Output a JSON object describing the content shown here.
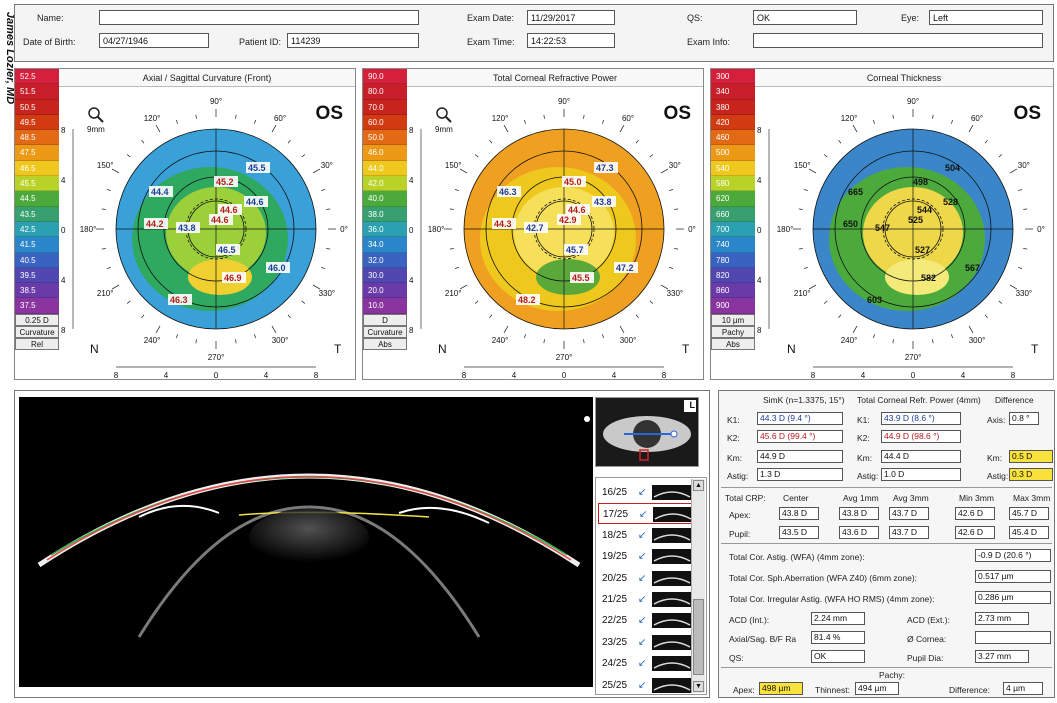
{
  "watermark": "James Lozier, MD",
  "header": {
    "name_label": "Name:",
    "name_value": "",
    "dob_label": "Date of Birth:",
    "dob_value": "04/27/1946",
    "pid_label": "Patient ID:",
    "pid_value": "114239",
    "exam_date_label": "Exam Date:",
    "exam_date_value": "11/29/2017",
    "exam_time_label": "Exam Time:",
    "exam_time_value": "14:22:53",
    "qs_label": "QS:",
    "qs_value": "OK",
    "exam_info_label": "Exam Info:",
    "exam_info_value": "",
    "eye_label": "Eye:",
    "eye_value": "Left"
  },
  "panels": [
    {
      "title": "Axial / Sagittal Curvature (Front)",
      "eye": "OS",
      "scale": [
        "52.5",
        "51.5",
        "50.5",
        "49.5",
        "48.5",
        "47.5",
        "46.5",
        "45.5",
        "44.5",
        "43.5",
        "42.5",
        "41.5",
        "40.5",
        "39.5",
        "38.5",
        "37.5"
      ],
      "scale_colors": [
        "#d4203c",
        "#c81e2a",
        "#c6241c",
        "#d23a12",
        "#e26a14",
        "#ec9a16",
        "#eec81c",
        "#b9d228",
        "#4caa3c",
        "#38a070",
        "#2aa0b0",
        "#2a86c8",
        "#3a62c0",
        "#5048b0",
        "#6a3aa8",
        "#8a34a0"
      ],
      "foot": [
        "0.25 D",
        "Curvature",
        "Rel"
      ],
      "labels": [
        "44.4",
        "44.2",
        "43.8",
        "44.6",
        "44.6",
        "45.2",
        "45.5",
        "44.6",
        "46.5",
        "46.9",
        "46.0",
        "46.3"
      ],
      "angles": [
        "90°",
        "60°",
        "30°",
        "0°",
        "330°",
        "300°",
        "270°",
        "240°",
        "210°",
        "180°",
        "150°",
        "120°"
      ],
      "nt": [
        "N",
        "T"
      ],
      "ticks": [
        "8",
        "4",
        "0",
        "4",
        "8"
      ],
      "magnifier": "9mm"
    },
    {
      "title": "Total Corneal Refractive Power",
      "eye": "OS",
      "scale": [
        "90.0",
        "80.0",
        "70.0",
        "60.0",
        "50.0",
        "46.0",
        "44.0",
        "42.0",
        "40.0",
        "38.0",
        "36.0",
        "34.0",
        "32.0",
        "30.0",
        "20.0",
        "10.0"
      ],
      "scale_colors": [
        "#d4203c",
        "#c81e2a",
        "#c6241c",
        "#d23a12",
        "#e26a14",
        "#ec9a16",
        "#eec81c",
        "#b9d228",
        "#4caa3c",
        "#38a070",
        "#2aa0b0",
        "#2a86c8",
        "#3a62c0",
        "#5048b0",
        "#6a3aa8",
        "#8a34a0"
      ],
      "foot": [
        "D",
        "Curvature",
        "Abs"
      ],
      "labels": [
        "46.3",
        "44.3",
        "42.7",
        "42.9",
        "43.8",
        "45.0",
        "47.3",
        "44.6",
        "45.7",
        "45.5",
        "47.2",
        "48.2"
      ],
      "angles": [
        "90°",
        "60°",
        "30°",
        "0°",
        "330°",
        "300°",
        "270°",
        "240°",
        "210°",
        "180°",
        "150°",
        "120°"
      ],
      "nt": [
        "N",
        "T"
      ],
      "ticks": [
        "8",
        "4",
        "0",
        "4",
        "8"
      ],
      "magnifier": "9mm"
    },
    {
      "title": "Corneal Thickness",
      "eye": "OS",
      "scale": [
        "300",
        "340",
        "380",
        "420",
        "460",
        "500",
        "540",
        "580",
        "620",
        "660",
        "700",
        "740",
        "780",
        "820",
        "860",
        "900"
      ],
      "scale_colors": [
        "#d4203c",
        "#c81e2a",
        "#c6241c",
        "#d23a12",
        "#e26a14",
        "#ec9a16",
        "#eec81c",
        "#b9d228",
        "#4caa3c",
        "#38a070",
        "#2aa0b0",
        "#2a86c8",
        "#3a62c0",
        "#5048b0",
        "#6a3aa8",
        "#8a34a0"
      ],
      "foot": [
        "10 µm",
        "Pachy",
        "Abs"
      ],
      "labels": [
        "665",
        "650",
        "547",
        "525",
        "528",
        "498",
        "504",
        "544",
        "527",
        "582",
        "567",
        "603"
      ],
      "angles": [
        "90°",
        "60°",
        "30°",
        "0°",
        "330°",
        "300°",
        "270°",
        "240°",
        "210°",
        "180°",
        "150°",
        "120°"
      ],
      "nt": [
        "N",
        "T"
      ],
      "ticks": [
        "8",
        "4",
        "0",
        "4",
        "8"
      ],
      "magnifier": ""
    }
  ],
  "scan": {
    "thumb_label": "L",
    "frames": [
      "16/25",
      "17/25",
      "18/25",
      "19/25",
      "20/25",
      "21/25",
      "22/25",
      "23/25",
      "24/25",
      "25/25"
    ],
    "selected": "17/25"
  },
  "metrics": {
    "simk_head": "SimK (n=1.3375, 15°)",
    "tcrp_head": "Total Corneal Refr. Power (4mm)",
    "diff_head": "Difference",
    "k1_label": "K1:",
    "k1_simk": "44.3 D (9.4 °)",
    "k1_tcrp": "43.9 D (8.6 °)",
    "axis_label": "Axis:",
    "axis_val": "0.8 °",
    "k2_label": "K2:",
    "k2_simk": "45.6 D (99.4 °)",
    "k2_tcrp": "44.9 D (98.6 °)",
    "km_label": "Km:",
    "km_simk": "44.9 D",
    "km_tcrp": "44.4 D",
    "km_diff": "0.5 D",
    "astig_label": "Astig:",
    "astig_simk": "1.3 D",
    "astig_tcrp": "1.0 D",
    "astig_diff": "0.3 D",
    "crp_head": "Total CRP:",
    "crp_cols": [
      "Center",
      "Avg 1mm",
      "Avg 3mm",
      "Min 3mm",
      "Max 3mm"
    ],
    "apex_label": "Apex:",
    "apex_vals": [
      "43.8 D",
      "43.8 D",
      "43.7 D",
      "42.6 D",
      "45.7 D"
    ],
    "pupil_label": "Pupil:",
    "pupil_vals": [
      "43.5 D",
      "43.6 D",
      "43.7 D",
      "42.6 D",
      "45.4 D"
    ],
    "tca_label": "Total Cor. Astig. (WFA) (4mm zone):",
    "tca_val": "-0.9 D (20.6 °)",
    "sph_label": "Total Cor. Sph.Aberration (WFA Z40) (6mm zone):",
    "sph_val": "0.517 µm",
    "irr_label": "Total Cor. Irregular Astig. (WFA HO RMS) (4mm zone):",
    "irr_val": "0.286 µm",
    "acd_int_label": "ACD (Int.):",
    "acd_int_val": "2.24 mm",
    "acd_ext_label": "ACD (Ext.):",
    "acd_ext_val": "2.73 mm",
    "axsag_label": "Axial/Sag. B/F Ra",
    "axsag_val": "81.4 %",
    "cornea_label": "Ø Cornea:",
    "cornea_val": "",
    "qs_label": "QS:",
    "qs_val": "OK",
    "pupil_dia_label": "Pupil Dia:",
    "pupil_dia_val": "3.27 mm",
    "pachy_head": "Pachy:",
    "pachy_apex_label": "Apex:",
    "pachy_apex_val": "498 µm",
    "thinnest_label": "Thinnest:",
    "thinnest_val": "494 µm",
    "pdiff_label": "Difference:",
    "pdiff_val": "4 µm"
  }
}
